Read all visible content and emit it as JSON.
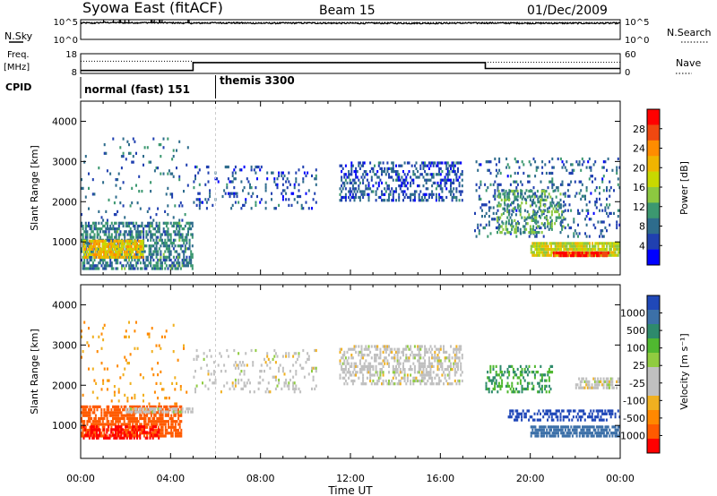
{
  "header": {
    "station": "Syowa East (fitACF)",
    "beam": "Beam 15",
    "date": "01/Dec/2009"
  },
  "left_labels": {
    "nsky": "N.Sky",
    "freq_line1": "Freq.",
    "freq_line2": "[MHz]",
    "cpid": "CPID"
  },
  "right_labels": {
    "nsearch": "N.Search",
    "nave": "Nave"
  },
  "count_axis": {
    "ticks_left": [
      "10^5",
      "10^0"
    ],
    "ticks_right": [
      "10^5",
      "10^0"
    ]
  },
  "freq_axis": {
    "ticks_left": [
      "18",
      "8"
    ],
    "ticks_right": [
      "60",
      "0"
    ]
  },
  "cpid_modes": [
    {
      "label": "normal (fast) 151",
      "start_hour": 0,
      "end_hour": 6
    },
    {
      "label": "themis 3300",
      "start_hour": 6,
      "end_hour": 24
    }
  ],
  "power_colorbar": {
    "label": "Power [dB]",
    "ticks": [
      "28",
      "24",
      "20",
      "16",
      "12",
      "8",
      "4"
    ],
    "colors": [
      "#ff0000",
      "#f04810",
      "#ff8c00",
      "#f0b400",
      "#c8d800",
      "#8cc840",
      "#3c9870",
      "#2e6c8c",
      "#2040b0",
      "#0000ff"
    ]
  },
  "velocity_colorbar": {
    "label": "Velocity [m s⁻¹]",
    "ticks": [
      "1000",
      "500",
      "100",
      "25",
      "-25",
      "-100",
      "-500",
      "-1000"
    ],
    "colors": [
      "#2048b8",
      "#3c70a8",
      "#2e8a6c",
      "#50b830",
      "#90cc40",
      "#c0c0c0",
      "#c0c0c0",
      "#f0b020",
      "#ff8800",
      "#ff5a00",
      "#ff0000"
    ]
  },
  "chart_data": [
    {
      "type": "line",
      "title": "N.Sky / N.Search",
      "x_range_hours": [
        0,
        24
      ],
      "series": [
        {
          "name": "N.Sky",
          "x": [
            0,
            0.2,
            0.5,
            1,
            2,
            3,
            4,
            5,
            6,
            8,
            10,
            12,
            14,
            16,
            18,
            20,
            22,
            24
          ],
          "values_log10": [
            4.1,
            4.2,
            4.1,
            4.3,
            4.2,
            4.25,
            4.2,
            4.1,
            4.2,
            4.1,
            4.15,
            4.1,
            4.1,
            4.1,
            4.15,
            4.1,
            4.1,
            4.1
          ]
        },
        {
          "name": "N.Search",
          "x": [
            0,
            24
          ],
          "values_log10": [
            4.3,
            4.3
          ]
        }
      ],
      "ylim_log10": [
        0,
        5
      ]
    },
    {
      "type": "line",
      "title": "Freq. / Nave",
      "x_range_hours": [
        0,
        24
      ],
      "series": [
        {
          "name": "Freq.",
          "x": [
            0,
            5.0,
            5.0,
            18.0,
            18.0,
            24
          ],
          "values": [
            9.5,
            9.5,
            13.5,
            13.5,
            10.5,
            10.5
          ],
          "ylim": [
            8,
            18
          ]
        },
        {
          "name": "Nave",
          "x": [
            0,
            5.0,
            5.0,
            18.0,
            18.0,
            24
          ],
          "values": [
            37,
            37,
            33,
            33,
            34,
            34
          ],
          "ylim": [
            0,
            60
          ]
        }
      ]
    },
    {
      "type": "heatmap",
      "title": "Power",
      "xlabel": "",
      "ylabel": "Slant Range [km]",
      "x_range_hours": [
        0,
        24
      ],
      "ylim": [
        180,
        4500
      ],
      "yticks": [
        1000,
        2000,
        3000,
        4000
      ],
      "value_label": "Power [dB]",
      "value_range": [
        0,
        32
      ],
      "regions": [
        {
          "t0": 0.0,
          "t1": 5.0,
          "r0": 300,
          "r1": 1500,
          "level": 9,
          "density": 0.55
        },
        {
          "t0": 0.1,
          "t1": 2.8,
          "r0": 580,
          "r1": 1050,
          "level": 20,
          "density": 0.75
        },
        {
          "t0": 0.0,
          "t1": 4.8,
          "r0": 1500,
          "r1": 3600,
          "level": 8,
          "density": 0.05
        },
        {
          "t0": 5.0,
          "t1": 10.5,
          "r0": 1800,
          "r1": 2900,
          "level": 6,
          "density": 0.14
        },
        {
          "t0": 11.5,
          "t1": 17.0,
          "r0": 2000,
          "r1": 3000,
          "level": 6,
          "density": 0.4
        },
        {
          "t0": 17.5,
          "t1": 24.0,
          "r0": 1100,
          "r1": 3100,
          "level": 7,
          "density": 0.15
        },
        {
          "t0": 18.5,
          "t1": 21.5,
          "r0": 1200,
          "r1": 2300,
          "level": 12,
          "density": 0.35
        },
        {
          "t0": 20.0,
          "t1": 24.0,
          "r0": 630,
          "r1": 1000,
          "level": 17,
          "density": 0.9
        },
        {
          "t0": 21.0,
          "t1": 23.5,
          "r0": 620,
          "r1": 760,
          "level": 29,
          "density": 0.85
        }
      ]
    },
    {
      "type": "heatmap",
      "title": "Velocity",
      "xlabel": "Time UT",
      "ylabel": "Slant Range [km]",
      "x_range_hours": [
        0,
        24
      ],
      "ylim": [
        180,
        4500
      ],
      "yticks": [
        1000,
        2000,
        3000,
        4000
      ],
      "xticks": [
        "00:00",
        "04:00",
        "08:00",
        "12:00",
        "16:00",
        "20:00",
        "00:00"
      ],
      "value_label": "Velocity [m s⁻¹]",
      "value_range": [
        -1000,
        1000
      ],
      "regions": [
        {
          "t0": 0.0,
          "t1": 4.5,
          "r0": 700,
          "r1": 1500,
          "level": -500,
          "density": 0.7
        },
        {
          "t0": 0.1,
          "t1": 3.5,
          "r0": 650,
          "r1": 1000,
          "level": -1000,
          "density": 0.45
        },
        {
          "t0": 2.0,
          "t1": 5.0,
          "r0": 1300,
          "r1": 1450,
          "level": 0,
          "density": 0.7
        },
        {
          "t0": 0.0,
          "t1": 4.8,
          "r0": 1500,
          "r1": 3600,
          "level": -100,
          "density": 0.05
        },
        {
          "t0": 5.0,
          "t1": 10.5,
          "r0": 1800,
          "r1": 2900,
          "level": 0,
          "density": 0.15
        },
        {
          "t0": 11.5,
          "t1": 17.0,
          "r0": 2000,
          "r1": 3000,
          "level": 0,
          "density": 0.45
        },
        {
          "t0": 18.0,
          "t1": 21.0,
          "r0": 1800,
          "r1": 2500,
          "level": 100,
          "density": 0.3
        },
        {
          "t0": 19.0,
          "t1": 24.0,
          "r0": 1100,
          "r1": 1400,
          "level": 1000,
          "density": 0.45
        },
        {
          "t0": 20.0,
          "t1": 24.0,
          "r0": 700,
          "r1": 1000,
          "level": 500,
          "density": 0.75
        },
        {
          "t0": 22.0,
          "t1": 24.0,
          "r0": 1900,
          "r1": 2200,
          "level": 0,
          "density": 0.55
        }
      ]
    }
  ]
}
